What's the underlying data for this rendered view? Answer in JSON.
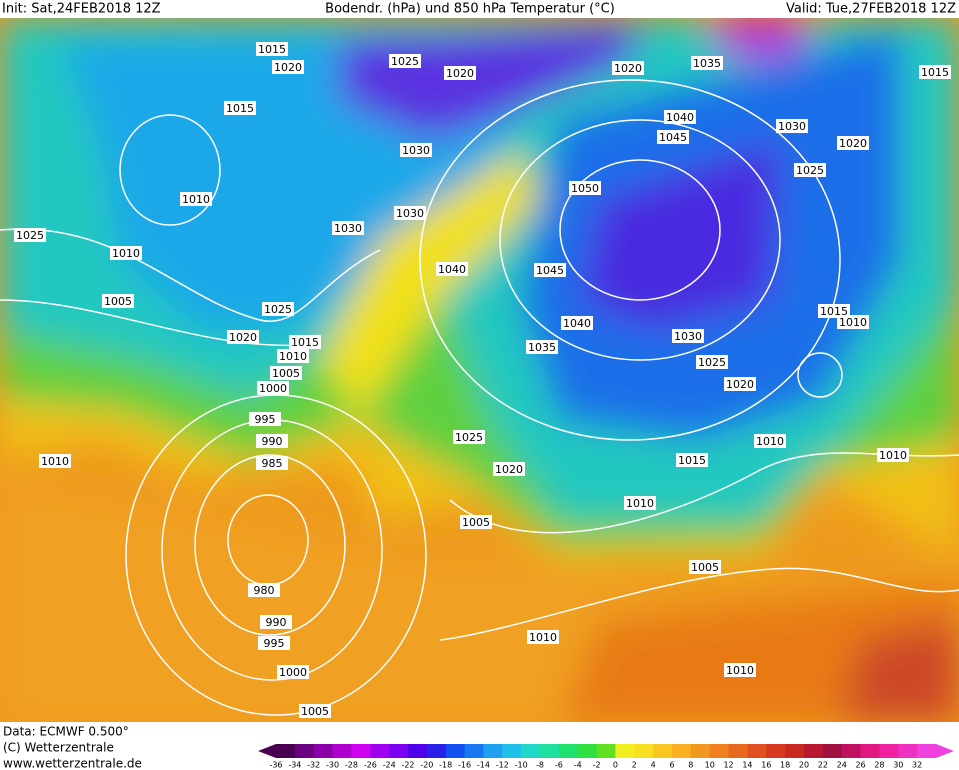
{
  "header": {
    "init": "Init: Sat,24FEB2018 12Z",
    "title": "Bodendr. (hPa) und 850 hPa Temperatur (°C)",
    "valid": "Valid: Tue,27FEB2018 12Z"
  },
  "isobar_labels": [
    "1015",
    "1020",
    "1025",
    "1020",
    "1020",
    "1035",
    "1015",
    "1015",
    "1030",
    "1020",
    "1030",
    "1045",
    "1040",
    "1025",
    "1050",
    "1010",
    "1030",
    "1030",
    "1025",
    "1010",
    "1040",
    "1045",
    "1005",
    "1025",
    "1040",
    "1020",
    "1015",
    "1010",
    "1035",
    "1030",
    "1025",
    "1005",
    "1000",
    "1020",
    "995",
    "990",
    "985",
    "1025",
    "1010",
    "1010",
    "1010",
    "1015",
    "1020",
    "1010",
    "1005",
    "980",
    "1005",
    "990",
    "995",
    "1010",
    "1000",
    "1010",
    "1005",
    "1015",
    "1010"
  ],
  "footer": {
    "data": "Data: ECMWF   0.500°",
    "copyright": "(C) Wetterzentrale",
    "url": "www.wetterzentrale.de"
  },
  "color_scale": {
    "labels": [
      "-36",
      "-34",
      "-32",
      "-30",
      "-28",
      "-26",
      "-24",
      "-22",
      "-20",
      "-18",
      "-16",
      "-14",
      "-12",
      "-10",
      "-8",
      "-6",
      "-4",
      "-2",
      "0",
      "2",
      "4",
      "6",
      "8",
      "10",
      "12",
      "14",
      "16",
      "18",
      "20",
      "22",
      "24",
      "26",
      "28",
      "30",
      "32"
    ]
  }
}
